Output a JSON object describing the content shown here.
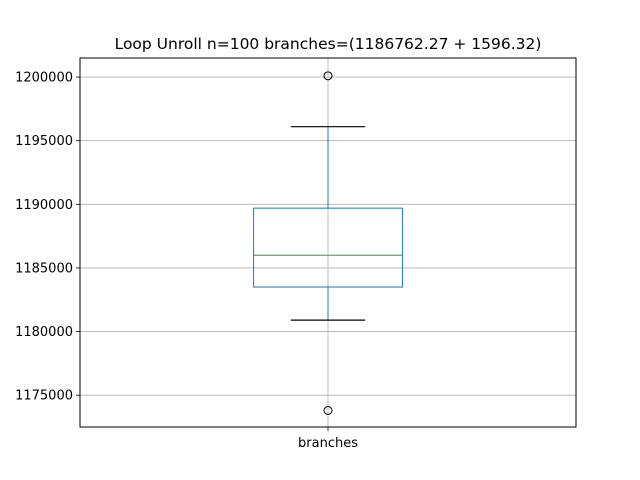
{
  "chart_data": {
    "type": "box",
    "title": "Loop Unroll n=100  branches=(1186762.27 + 1596.32)",
    "xlabel": "",
    "ylabel": "",
    "categories": [
      "branches"
    ],
    "ylim": [
      1172500,
      1201500
    ],
    "yticks": [
      1175000,
      1180000,
      1185000,
      1190000,
      1195000,
      1200000
    ],
    "ytick_labels": [
      "1175000",
      "1180000",
      "1185000",
      "1190000",
      "1195000",
      "1200000"
    ],
    "grid": true,
    "boxes": [
      {
        "name": "branches",
        "whisker_low": 1180900,
        "q1": 1183500,
        "median": 1186000,
        "q3": 1189700,
        "whisker_high": 1196100,
        "outliers": [
          1200100,
          1173800
        ]
      }
    ],
    "colors": {
      "box": "#1f77b4",
      "median": "#2ca02c",
      "caps": "#000000",
      "grid": "#b0b0b0",
      "outlier_edge": "#000000"
    }
  }
}
